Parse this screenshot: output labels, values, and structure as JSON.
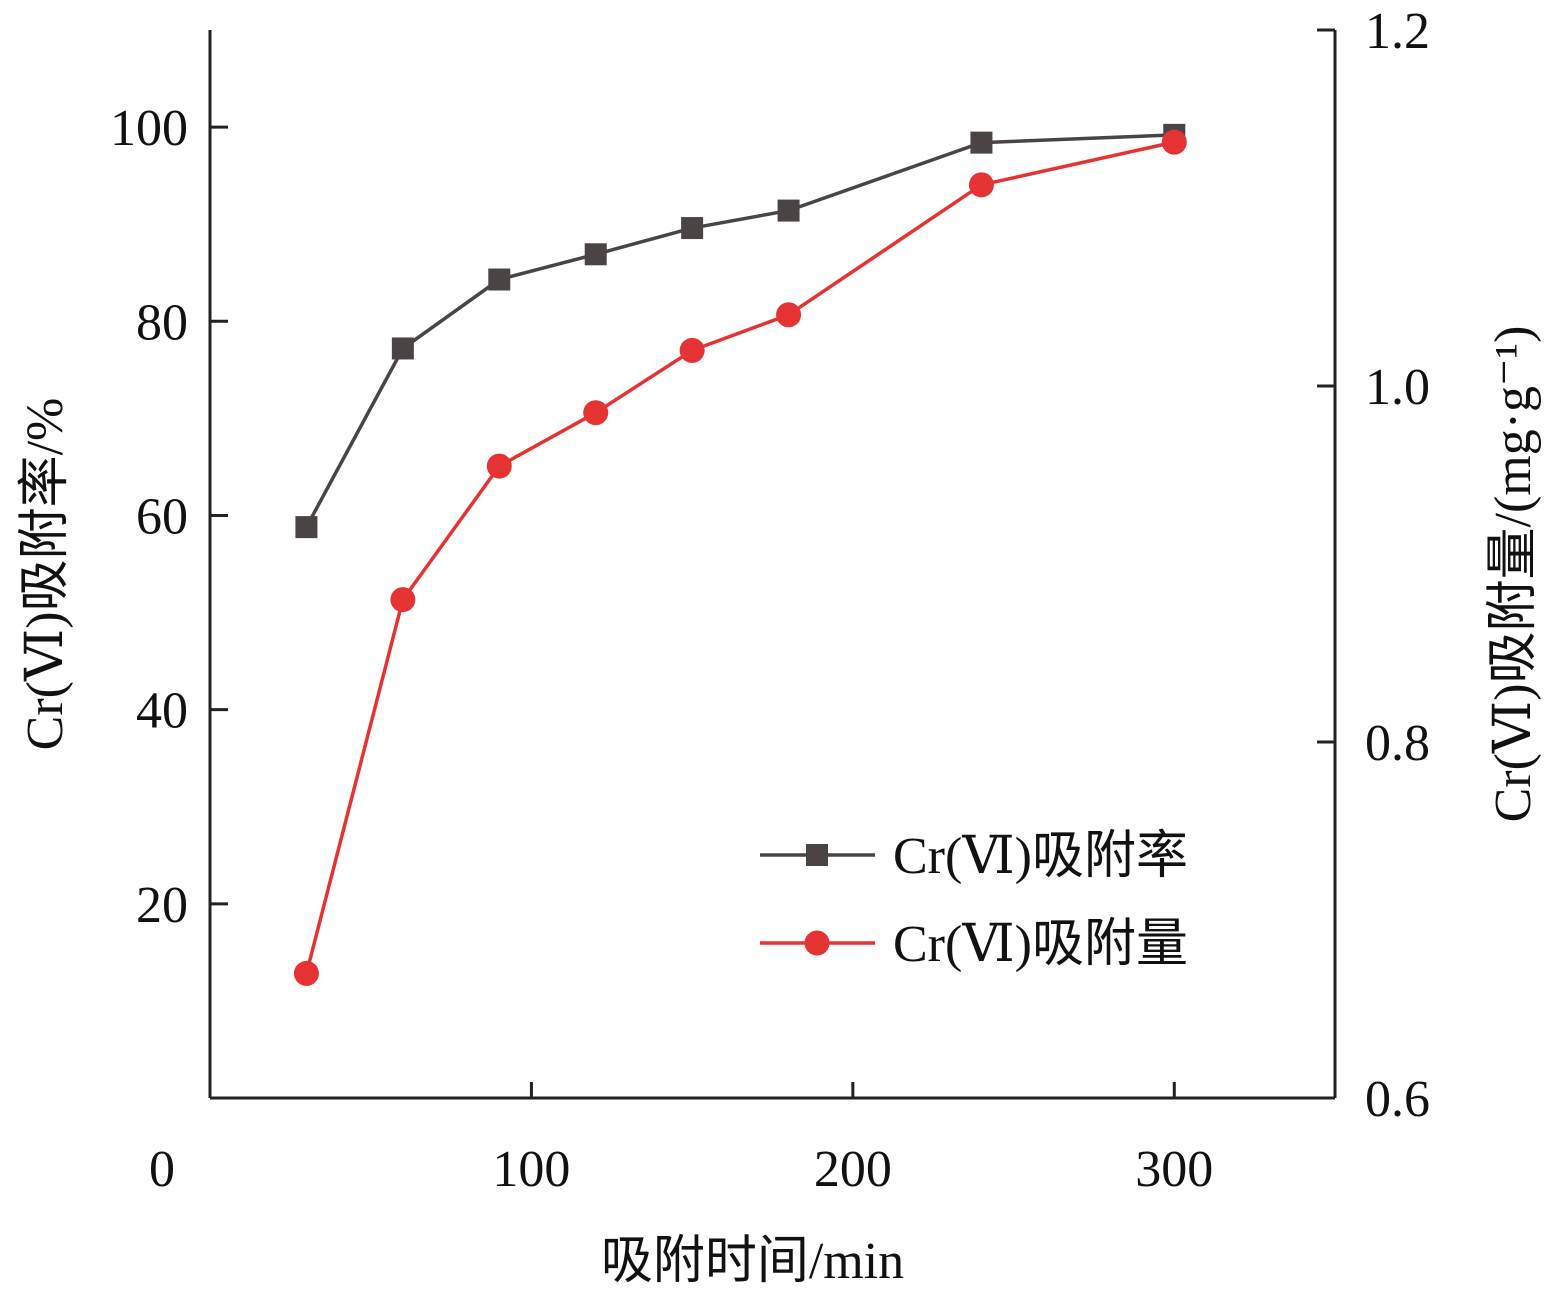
{
  "chart_data": {
    "type": "line",
    "xlabel": "吸附时间/min",
    "ylabel_left": "Cr(Ⅵ)吸附率/%",
    "ylabel_right": "Cr(Ⅵ)吸附量/(mg·g⁻¹)",
    "xlim": [
      0,
      350
    ],
    "ylim_left": [
      0,
      110
    ],
    "ylim_right": [
      0.6,
      1.2
    ],
    "x_ticks": [
      0,
      100,
      200,
      300
    ],
    "y_ticks_left": [
      20,
      40,
      60,
      80,
      100
    ],
    "y_ticks_right": [
      0.6,
      0.8,
      1.0,
      1.2
    ],
    "y_tick_labels_right": [
      "0.6",
      "0.8",
      "1.0",
      "1.2"
    ],
    "x": [
      30,
      60,
      90,
      120,
      150,
      180,
      240,
      300
    ],
    "series": [
      {
        "name": "Cr(Ⅵ)吸附率",
        "axis": "left",
        "marker": "square",
        "color": "#4a4444",
        "values": [
          58.8,
          77.2,
          84.3,
          86.9,
          89.6,
          91.4,
          98.4,
          99.2
        ]
      },
      {
        "name": "Cr(Ⅵ)吸附量",
        "axis": "right",
        "marker": "circle",
        "color": "#e53232",
        "values": [
          0.67,
          0.88,
          0.955,
          0.985,
          1.02,
          1.04,
          1.113,
          1.137
        ]
      }
    ],
    "grid": false,
    "legend_position": "bottom-right"
  }
}
